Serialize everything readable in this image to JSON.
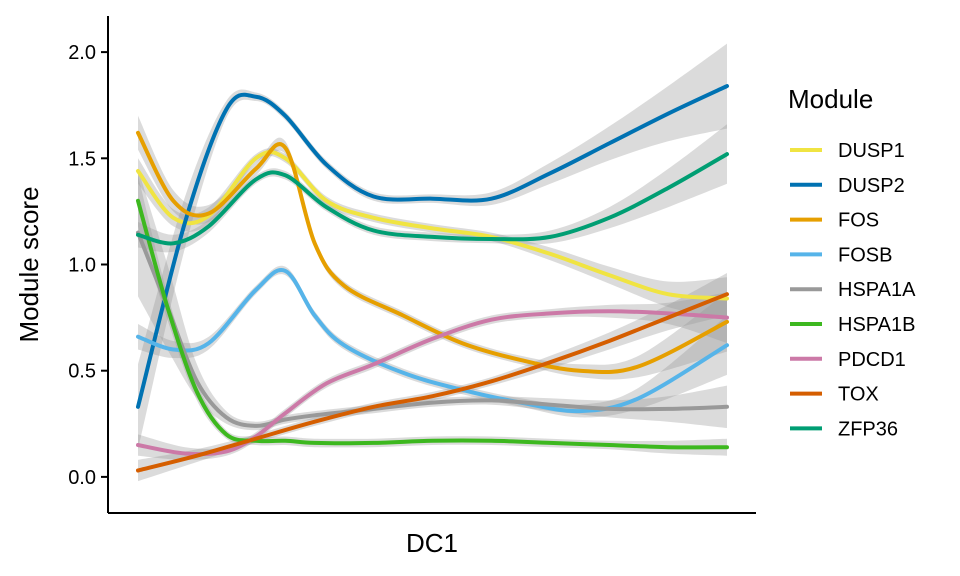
{
  "chart_data": {
    "type": "line",
    "xlabel": "DC1",
    "ylabel": "Module score",
    "xlim": [
      0,
      1
    ],
    "ylim": [
      -0.17,
      2.17
    ],
    "yticks": [
      0.0,
      0.5,
      1.0,
      1.5,
      2.0
    ],
    "ytick_labels": [
      "0.0",
      "0.5",
      "1.0",
      "1.5",
      "2.0"
    ],
    "grid": false,
    "legend": {
      "title": "Module",
      "position": "right"
    },
    "series": [
      {
        "name": "DUSP1",
        "color": "#F0E442",
        "x": [
          0,
          0.06,
          0.12,
          0.2,
          0.25,
          0.32,
          0.4,
          0.5,
          0.6,
          0.7,
          0.8,
          0.9,
          1.0
        ],
        "y": [
          1.44,
          1.22,
          1.23,
          1.5,
          1.5,
          1.3,
          1.22,
          1.17,
          1.13,
          1.05,
          0.95,
          0.86,
          0.84
        ],
        "band": [
          0.06,
          0.04,
          0.04,
          0.02,
          0.02,
          0.02,
          0.02,
          0.02,
          0.02,
          0.03,
          0.04,
          0.06,
          0.1
        ]
      },
      {
        "name": "DUSP2",
        "color": "#0072B2",
        "x": [
          0,
          0.08,
          0.15,
          0.2,
          0.25,
          0.32,
          0.4,
          0.5,
          0.6,
          0.7,
          0.8,
          0.9,
          1.0
        ],
        "y": [
          0.33,
          1.2,
          1.73,
          1.79,
          1.7,
          1.47,
          1.32,
          1.31,
          1.31,
          1.43,
          1.57,
          1.71,
          1.84
        ],
        "band": [
          0.2,
          0.12,
          0.04,
          0.02,
          0.02,
          0.02,
          0.02,
          0.02,
          0.03,
          0.05,
          0.08,
          0.13,
          0.2
        ]
      },
      {
        "name": "FOS",
        "color": "#E69F00",
        "x": [
          0,
          0.06,
          0.12,
          0.2,
          0.25,
          0.3,
          0.35,
          0.45,
          0.55,
          0.65,
          0.75,
          0.85,
          1.0
        ],
        "y": [
          1.62,
          1.3,
          1.24,
          1.45,
          1.55,
          1.1,
          0.9,
          0.76,
          0.63,
          0.55,
          0.5,
          0.52,
          0.73
        ],
        "band": [
          0.08,
          0.05,
          0.04,
          0.03,
          0.03,
          0.02,
          0.02,
          0.02,
          0.02,
          0.02,
          0.03,
          0.05,
          0.14
        ]
      },
      {
        "name": "FOSB",
        "color": "#56B4E9",
        "x": [
          0,
          0.06,
          0.12,
          0.2,
          0.25,
          0.3,
          0.35,
          0.45,
          0.55,
          0.65,
          0.75,
          0.85,
          1.0
        ],
        "y": [
          0.66,
          0.6,
          0.63,
          0.88,
          0.97,
          0.76,
          0.62,
          0.49,
          0.41,
          0.35,
          0.31,
          0.37,
          0.62
        ],
        "band": [
          0.06,
          0.04,
          0.03,
          0.02,
          0.02,
          0.02,
          0.02,
          0.02,
          0.02,
          0.02,
          0.03,
          0.05,
          0.14
        ]
      },
      {
        "name": "HSPA1A",
        "color": "#999999",
        "x": [
          0,
          0.05,
          0.1,
          0.15,
          0.2,
          0.25,
          0.3,
          0.4,
          0.5,
          0.6,
          0.7,
          0.8,
          0.9,
          1.0
        ],
        "y": [
          1.15,
          0.8,
          0.45,
          0.28,
          0.24,
          0.27,
          0.29,
          0.32,
          0.35,
          0.36,
          0.34,
          0.32,
          0.32,
          0.33
        ],
        "band": [
          0.3,
          0.2,
          0.08,
          0.03,
          0.02,
          0.02,
          0.02,
          0.02,
          0.02,
          0.02,
          0.03,
          0.04,
          0.06,
          0.1
        ]
      },
      {
        "name": "HSPA1B",
        "color": "#3DB81F",
        "x": [
          0,
          0.05,
          0.1,
          0.15,
          0.2,
          0.25,
          0.3,
          0.4,
          0.5,
          0.6,
          0.7,
          0.8,
          0.9,
          1.0
        ],
        "y": [
          1.3,
          0.8,
          0.4,
          0.2,
          0.17,
          0.17,
          0.16,
          0.16,
          0.17,
          0.17,
          0.16,
          0.15,
          0.14,
          0.14
        ],
        "band": [
          0.12,
          0.06,
          0.04,
          0.02,
          0.02,
          0.02,
          0.02,
          0.02,
          0.02,
          0.02,
          0.02,
          0.02,
          0.03,
          0.04
        ]
      },
      {
        "name": "PDCD1",
        "color": "#CC79A7",
        "x": [
          0,
          0.08,
          0.15,
          0.2,
          0.25,
          0.32,
          0.4,
          0.5,
          0.6,
          0.7,
          0.8,
          0.9,
          1.0
        ],
        "y": [
          0.15,
          0.11,
          0.12,
          0.19,
          0.3,
          0.44,
          0.53,
          0.65,
          0.74,
          0.77,
          0.78,
          0.77,
          0.75
        ],
        "band": [
          0.05,
          0.03,
          0.02,
          0.02,
          0.02,
          0.02,
          0.02,
          0.02,
          0.02,
          0.02,
          0.03,
          0.05,
          0.12
        ]
      },
      {
        "name": "TOX",
        "color": "#D55E00",
        "x": [
          0,
          0.1,
          0.2,
          0.3,
          0.4,
          0.5,
          0.6,
          0.7,
          0.8,
          0.9,
          1.0
        ],
        "y": [
          0.03,
          0.1,
          0.18,
          0.26,
          0.33,
          0.38,
          0.45,
          0.54,
          0.64,
          0.75,
          0.86
        ],
        "band": [
          0.05,
          0.03,
          0.02,
          0.02,
          0.02,
          0.02,
          0.02,
          0.03,
          0.04,
          0.06,
          0.1
        ]
      },
      {
        "name": "ZFP36",
        "color": "#009E73",
        "x": [
          0,
          0.06,
          0.12,
          0.2,
          0.25,
          0.32,
          0.4,
          0.5,
          0.6,
          0.7,
          0.8,
          0.9,
          1.0
        ],
        "y": [
          1.14,
          1.1,
          1.18,
          1.4,
          1.42,
          1.27,
          1.16,
          1.13,
          1.12,
          1.13,
          1.22,
          1.36,
          1.52
        ],
        "band": [
          0.06,
          0.04,
          0.03,
          0.02,
          0.02,
          0.02,
          0.02,
          0.02,
          0.02,
          0.03,
          0.05,
          0.09,
          0.14
        ]
      }
    ]
  }
}
